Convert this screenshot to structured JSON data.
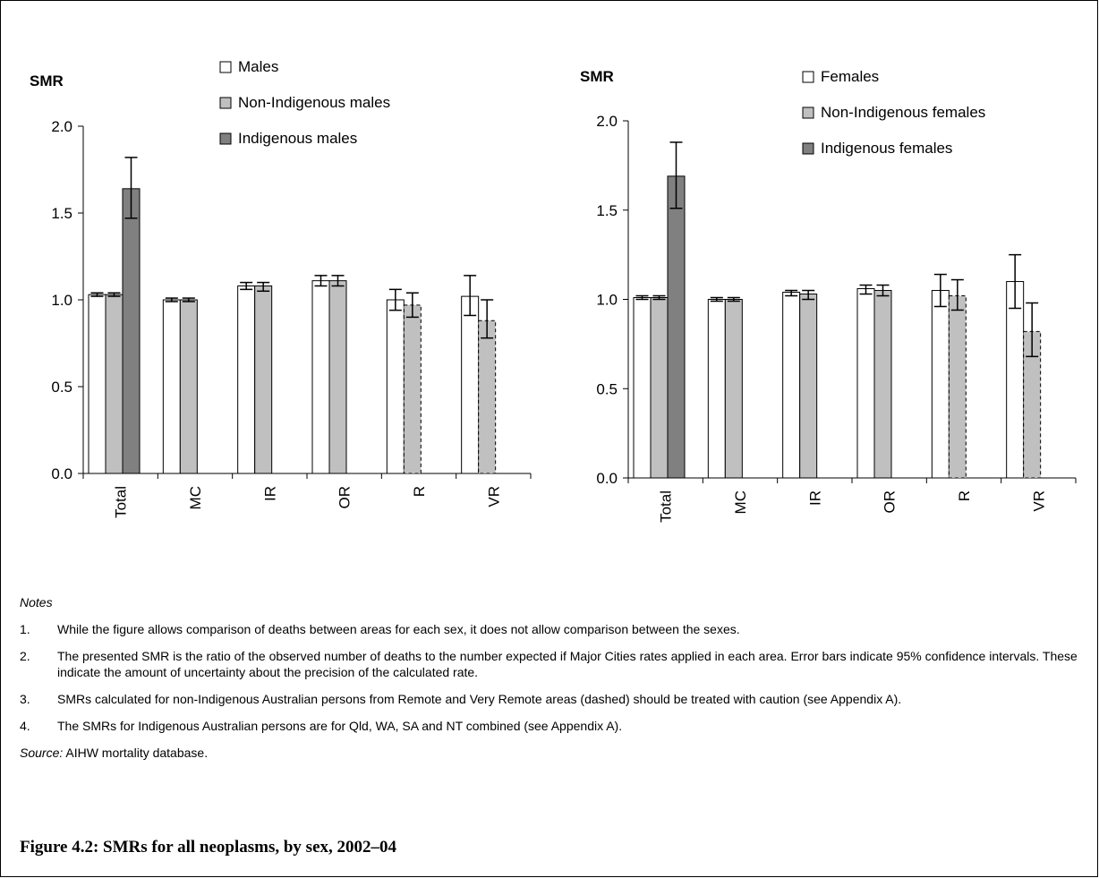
{
  "chart_data": [
    {
      "type": "bar",
      "ylabel": "SMR",
      "ylim": [
        0,
        2.0
      ],
      "yticks": [
        "0.0",
        "0.5",
        "1.0",
        "1.5",
        "2.0"
      ],
      "categories": [
        "Total",
        "MC",
        "IR",
        "OR",
        "R",
        "VR"
      ],
      "series": [
        {
          "name": "Males",
          "color": "#ffffff",
          "values": [
            1.03,
            1.0,
            1.08,
            1.11,
            1.0,
            1.02
          ],
          "ci_low": [
            1.02,
            0.99,
            1.06,
            1.08,
            0.94,
            0.91
          ],
          "ci_high": [
            1.04,
            1.01,
            1.1,
            1.14,
            1.06,
            1.14
          ],
          "dashed": [
            false,
            false,
            false,
            false,
            false,
            false
          ]
        },
        {
          "name": "Non-Indigenous males",
          "color": "#c0c0c0",
          "values": [
            1.03,
            1.0,
            1.08,
            1.11,
            0.97,
            0.88
          ],
          "ci_low": [
            1.02,
            0.99,
            1.05,
            1.08,
            0.9,
            0.78
          ],
          "ci_high": [
            1.04,
            1.01,
            1.1,
            1.14,
            1.04,
            1.0
          ],
          "dashed": [
            false,
            false,
            false,
            false,
            true,
            true
          ]
        },
        {
          "name": "Indigenous males",
          "color": "#808080",
          "values": [
            1.64,
            null,
            null,
            null,
            null,
            null
          ],
          "ci_low": [
            1.47,
            null,
            null,
            null,
            null,
            null
          ],
          "ci_high": [
            1.82,
            null,
            null,
            null,
            null,
            null
          ],
          "dashed": [
            false,
            false,
            false,
            false,
            false,
            false
          ]
        }
      ]
    },
    {
      "type": "bar",
      "ylabel": "SMR",
      "ylim": [
        0,
        2.0
      ],
      "yticks": [
        "0.0",
        "0.5",
        "1.0",
        "1.5",
        "2.0"
      ],
      "categories": [
        "Total",
        "MC",
        "IR",
        "OR",
        "R",
        "VR"
      ],
      "series": [
        {
          "name": "Females",
          "color": "#ffffff",
          "values": [
            1.01,
            1.0,
            1.04,
            1.06,
            1.05,
            1.1
          ],
          "ci_low": [
            1.0,
            0.99,
            1.02,
            1.03,
            0.96,
            0.95
          ],
          "ci_high": [
            1.02,
            1.01,
            1.05,
            1.08,
            1.14,
            1.25
          ],
          "dashed": [
            false,
            false,
            false,
            false,
            false,
            false
          ]
        },
        {
          "name": "Non-Indigenous females",
          "color": "#c0c0c0",
          "values": [
            1.01,
            1.0,
            1.03,
            1.05,
            1.02,
            0.82
          ],
          "ci_low": [
            1.0,
            0.99,
            1.0,
            1.02,
            0.94,
            0.68
          ],
          "ci_high": [
            1.02,
            1.01,
            1.05,
            1.08,
            1.11,
            0.98
          ],
          "dashed": [
            false,
            false,
            false,
            false,
            true,
            true
          ]
        },
        {
          "name": "Indigenous females",
          "color": "#808080",
          "values": [
            1.69,
            null,
            null,
            null,
            null,
            null
          ],
          "ci_low": [
            1.51,
            null,
            null,
            null,
            null,
            null
          ],
          "ci_high": [
            1.88,
            null,
            null,
            null,
            null,
            null
          ],
          "dashed": [
            false,
            false,
            false,
            false,
            false,
            false
          ]
        }
      ]
    }
  ],
  "notes": {
    "heading": "Notes",
    "items": [
      {
        "num": "1.",
        "text": "While the figure allows comparison of deaths between areas for each sex, it does not allow comparison between the sexes."
      },
      {
        "num": "2.",
        "text": "The presented SMR is the ratio of the observed number of deaths to the number expected if Major Cities rates applied in each area. Error bars indicate 95% confidence intervals. These indicate the amount of uncertainty about the precision of the calculated rate."
      },
      {
        "num": "3.",
        "text": "SMRs calculated for non-Indigenous Australian persons from Remote and Very Remote areas (dashed) should be treated with caution (see Appendix A)."
      },
      {
        "num": "4.",
        "text": "The SMRs for Indigenous Australian persons are for Qld, WA, SA and NT combined (see Appendix A)."
      }
    ],
    "source_label": "Source:",
    "source_text": " AIHW mortality database."
  },
  "figure_title": "Figure 4.2: SMRs for all neoplasms, by sex, 2002–04"
}
